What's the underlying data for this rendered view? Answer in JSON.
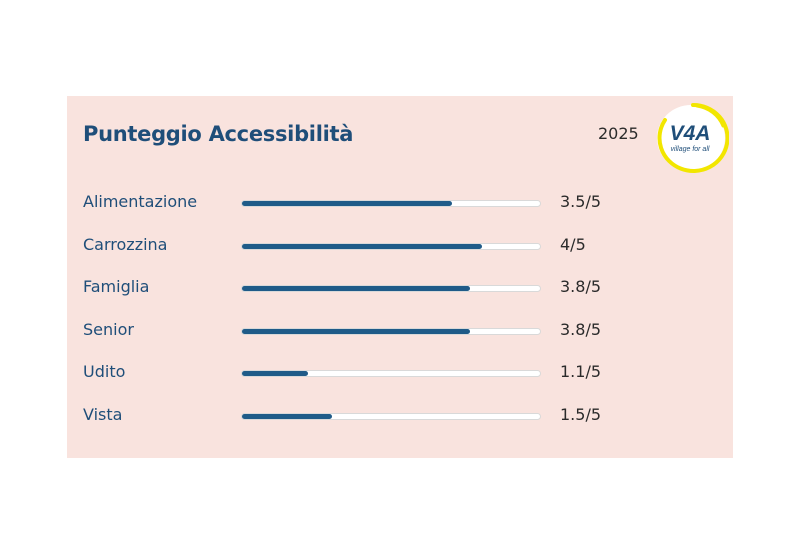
{
  "card": {
    "title": "Punteggio Accessibilità",
    "year": "2025",
    "logo": {
      "icon": "v4a-logo",
      "mark": "V4A",
      "tagline": "village for all",
      "ring_color": "#f2e600",
      "mark_color": "#1f4e79"
    },
    "accent_color": "#1f5b88",
    "background_color": "#f9e3de",
    "scores": [
      {
        "label": "Alimentazione",
        "score_text": "3.5/5",
        "value": 3.5,
        "max": 5
      },
      {
        "label": "Carrozzina",
        "score_text": "4/5",
        "value": 4,
        "max": 5
      },
      {
        "label": "Famiglia",
        "score_text": "3.8/5",
        "value": 3.8,
        "max": 5
      },
      {
        "label": "Senior",
        "score_text": "3.8/5",
        "value": 3.8,
        "max": 5
      },
      {
        "label": "Udito",
        "score_text": "1.1/5",
        "value": 1.1,
        "max": 5
      },
      {
        "label": "Vista",
        "score_text": "1.5/5",
        "value": 1.5,
        "max": 5
      }
    ]
  }
}
